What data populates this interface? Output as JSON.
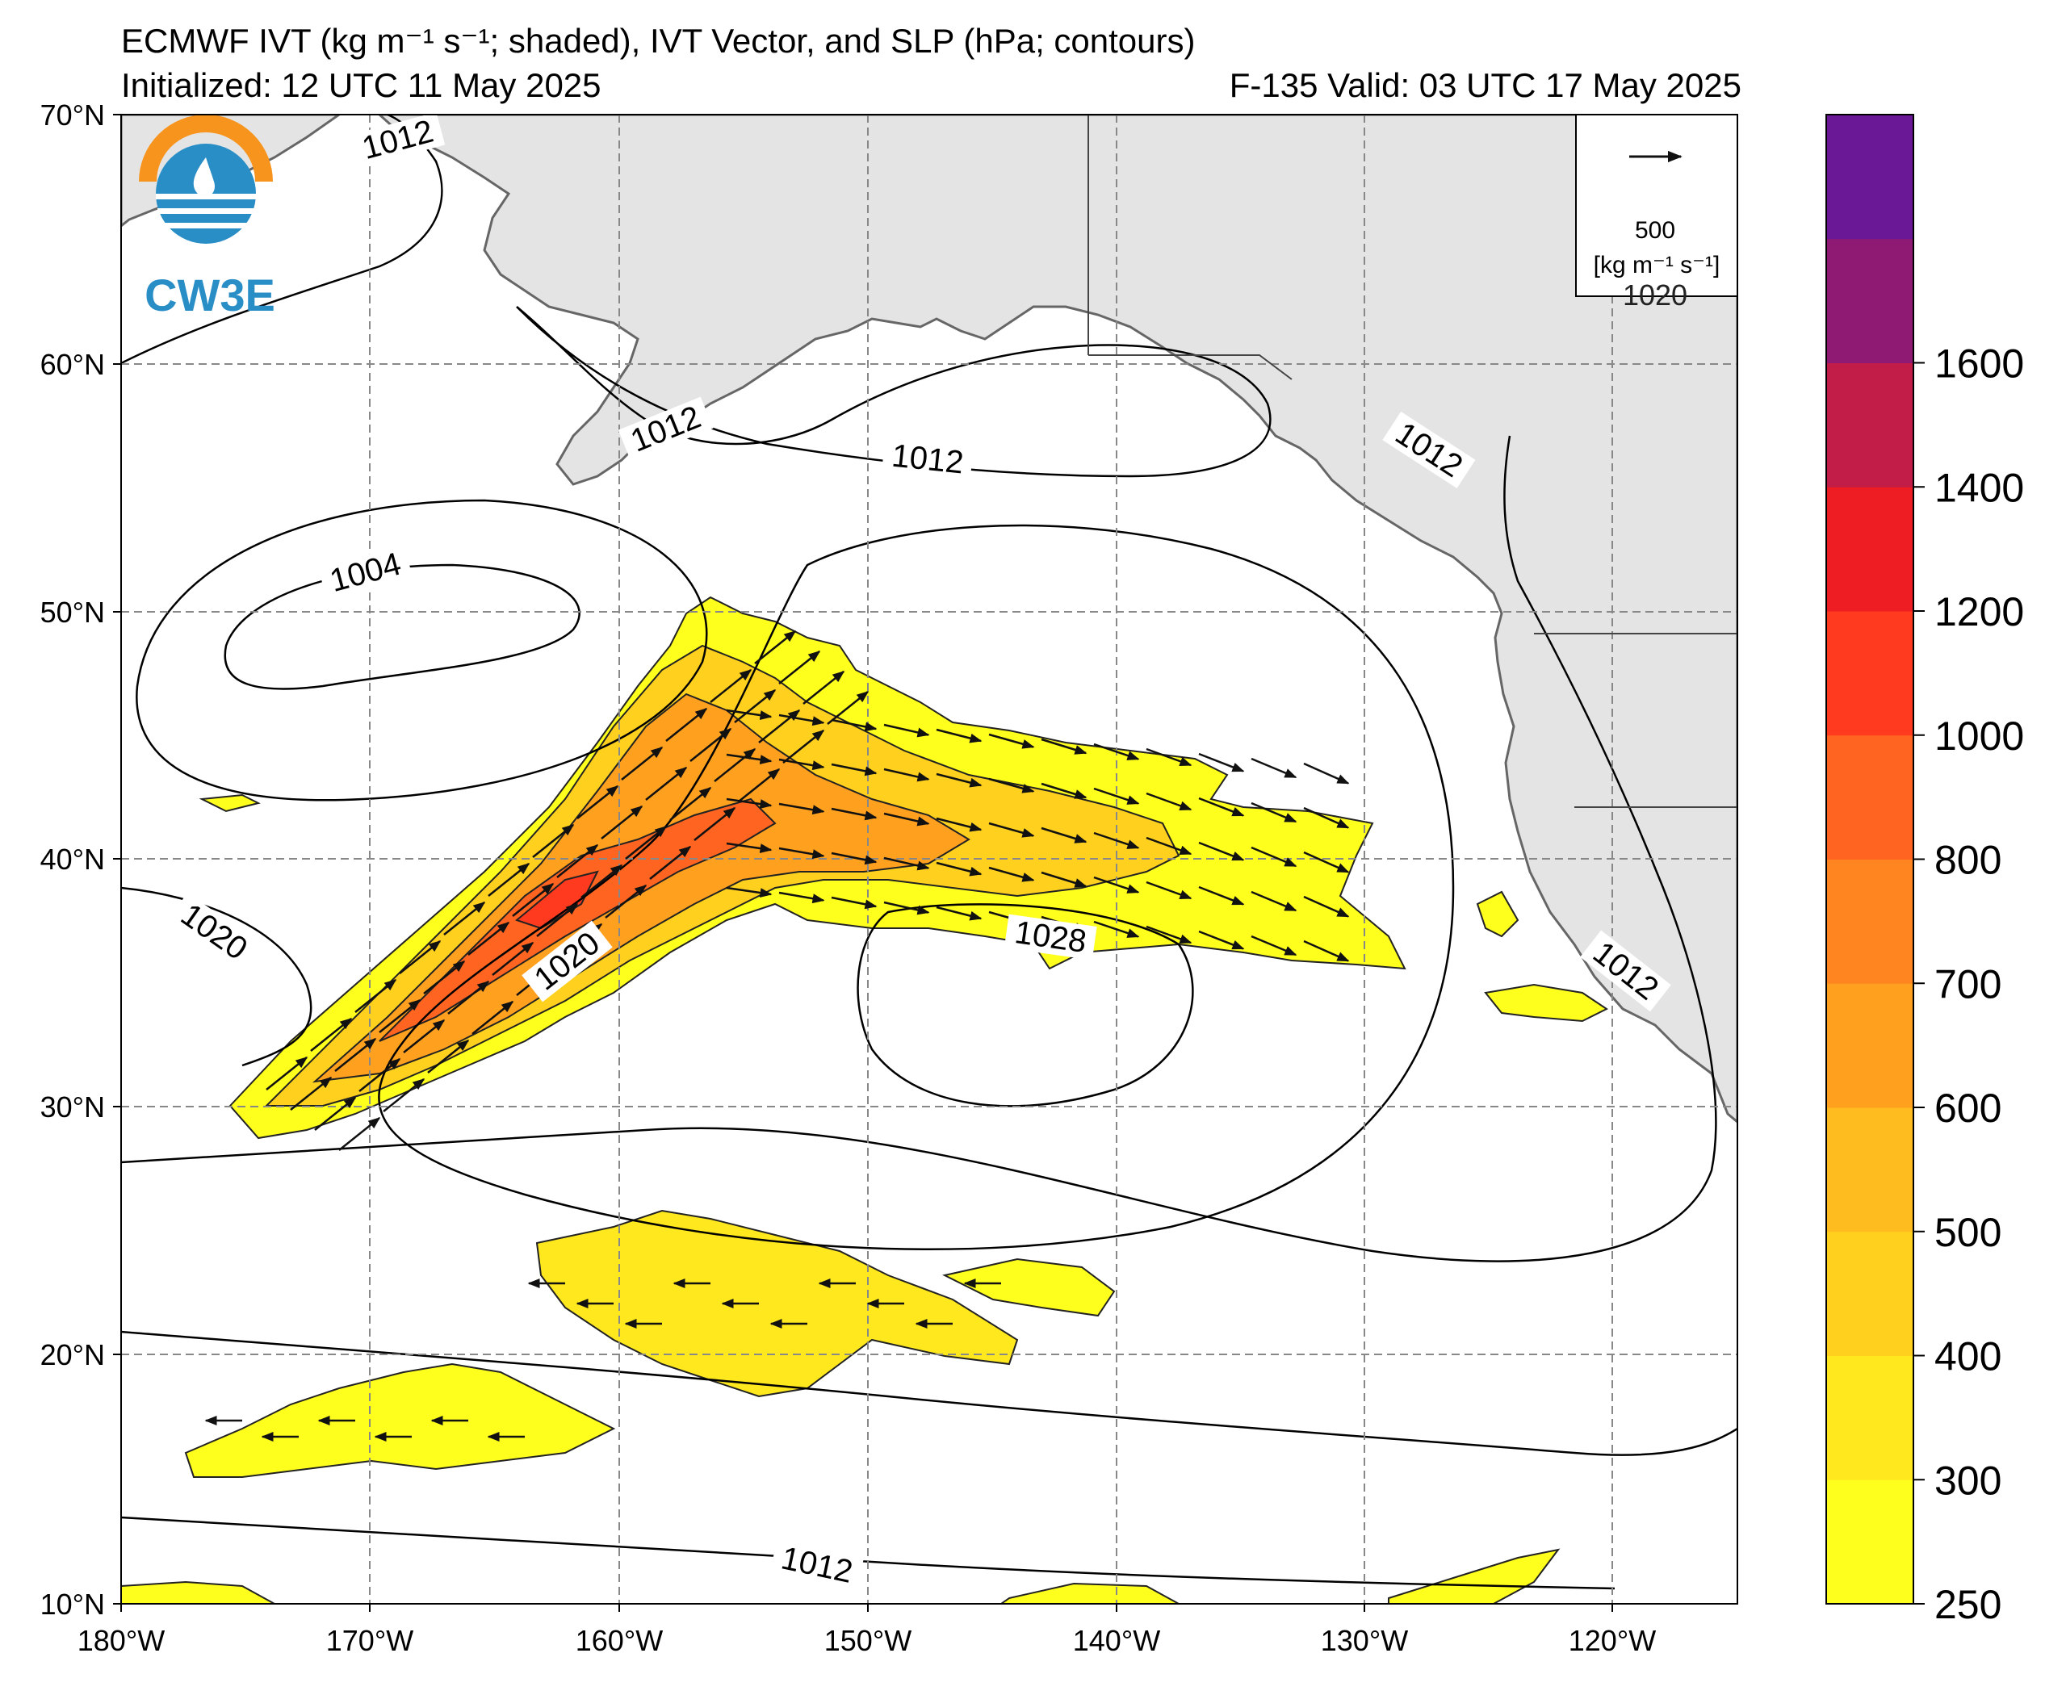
{
  "title": {
    "line1": "ECMWF IVT (kg m⁻¹ s⁻¹; shaded), IVT Vector, and SLP (hPa; contours)",
    "init": "Initialized: 12 UTC 11 May 2025",
    "valid": "F-135  Valid: 03 UTC 17 May 2025"
  },
  "logo": {
    "text": "CW3E"
  },
  "map": {
    "lat_labels": [
      "70°N",
      "60°N",
      "50°N",
      "40°N",
      "30°N",
      "20°N",
      "10°N"
    ],
    "lon_labels": [
      "180°W",
      "170°W",
      "160°W",
      "150°W",
      "140°W",
      "130°W",
      "120°W"
    ],
    "slp_contour_labels": [
      "1012",
      "1012",
      "1012",
      "1012",
      "1004",
      "1020",
      "1020",
      "1028",
      "1012",
      "1012"
    ],
    "partial_label": "1020"
  },
  "vector_key": {
    "value": "500",
    "units": "[kg m⁻¹ s⁻¹]"
  },
  "colorbar": {
    "ticks": [
      "250",
      "300",
      "400",
      "500",
      "600",
      "700",
      "800",
      "1000",
      "1200",
      "1400",
      "1600"
    ],
    "colors": [
      "#ffff1e",
      "#ffe81e",
      "#ffd11e",
      "#ffbc1e",
      "#ffa01e",
      "#ff8520",
      "#ff6420",
      "#ff3a1e",
      "#ee1d23",
      "#c21c48",
      "#8e1a74",
      "#6a1896"
    ]
  },
  "colors": {
    "land": "#e4e4e4",
    "coast": "#666666",
    "grid": "#888888",
    "logo_orange": "#f7941d",
    "logo_blue": "#2a8ec6"
  }
}
